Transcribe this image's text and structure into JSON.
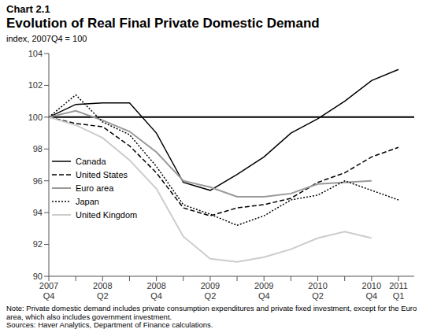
{
  "chart_data": {
    "type": "line",
    "title": "Evolution of Real Final Private Domestic Demand",
    "subtitle": "index, 2007Q4 = 100",
    "annotations": [
      "Chart 2.1",
      "Note: Private domestic demand includes private consumption expenditures and private fixed investment, except for the Euro area, which also includes government investment.",
      "Sources: Haver Analytics, Department of Finance calculations."
    ],
    "categories": [
      "2007 Q4",
      null,
      "2008 Q2",
      null,
      "2008 Q4",
      null,
      "2009 Q2",
      null,
      "2009 Q4",
      null,
      "2010 Q2",
      null,
      "2010 Q4",
      "2011 Q1"
    ],
    "series": [
      {
        "name": "Canada",
        "color": "#000000",
        "line_style": "solid",
        "values": [
          100,
          100.8,
          100.9,
          100.9,
          99.0,
          95.9,
          95.4,
          96.4,
          97.5,
          99.0,
          99.9,
          101.0,
          102.3,
          103.0
        ]
      },
      {
        "name": "United States",
        "color": "#000000",
        "line_style": "dashed",
        "values": [
          100,
          99.6,
          99.4,
          98.2,
          96.5,
          94.3,
          93.8,
          94.3,
          94.5,
          94.9,
          95.9,
          96.5,
          97.5,
          98.1
        ]
      },
      {
        "name": "Euro area",
        "color": "#999999",
        "line_style": "solid",
        "values": [
          100,
          100.4,
          99.8,
          99.1,
          97.8,
          96.0,
          95.6,
          95.0,
          95.0,
          95.2,
          95.8,
          95.9,
          96.0,
          null
        ]
      },
      {
        "name": "Japan",
        "color": "#000000",
        "line_style": "dotted",
        "values": [
          100,
          101.4,
          99.7,
          98.9,
          96.9,
          94.5,
          93.9,
          93.2,
          93.8,
          94.8,
          95.1,
          96.0,
          95.4,
          94.8
        ]
      },
      {
        "name": "United Kingdom",
        "color": "#cccccc",
        "line_style": "solid",
        "values": [
          100,
          99.5,
          98.7,
          97.3,
          95.5,
          92.5,
          91.1,
          90.9,
          91.2,
          91.7,
          92.4,
          92.8,
          92.4,
          null
        ]
      }
    ],
    "ylim": [
      90,
      104
    ],
    "yticks": [
      90,
      92,
      94,
      96,
      98,
      100,
      102,
      104
    ],
    "legend": "left",
    "grid": false
  }
}
